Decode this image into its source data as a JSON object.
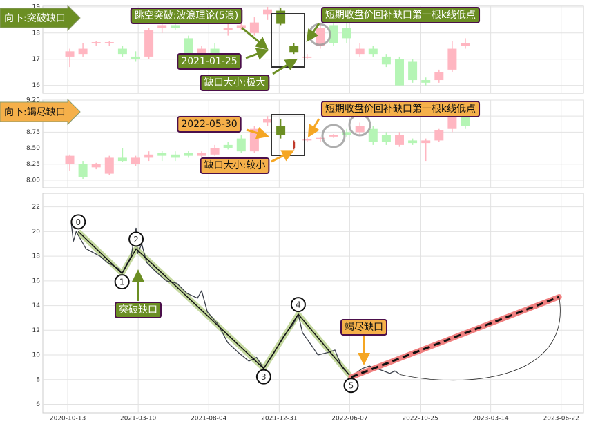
{
  "chart_data": [
    {
      "type": "candlestick",
      "title": "向下:突破缺口",
      "open": [
        17.1,
        17.2,
        17.6,
        17.6,
        17.4,
        17.1,
        17.1,
        18.2,
        18.3,
        17.8,
        17.2,
        17.4,
        18.1,
        18.2,
        18.0,
        18.7,
        18.85,
        17.5,
        17.05,
        17.5,
        18.3,
        18.2,
        17.2,
        17.4,
        17.1,
        17.0,
        16.9,
        16.2,
        16.2,
        16.6,
        17.5
      ],
      "high": [
        17.4,
        17.6,
        17.7,
        17.7,
        17.5,
        17.3,
        18.2,
        18.4,
        18.5,
        17.9,
        17.5,
        17.6,
        18.4,
        18.5,
        18.6,
        19.0,
        18.95,
        17.6,
        17.2,
        18.4,
        18.6,
        18.6,
        17.6,
        17.5,
        17.2,
        17.1,
        17.0,
        16.3,
        16.6,
        17.7,
        17.8
      ],
      "low": [
        16.7,
        17.1,
        17.5,
        17.5,
        17.1,
        16.9,
        17.0,
        18.0,
        18.1,
        17.0,
        17.1,
        17.1,
        17.9,
        18.1,
        17.9,
        18.5,
        18.3,
        17.2,
        17.0,
        17.4,
        17.5,
        17.6,
        17.1,
        17.1,
        16.7,
        16.0,
        16.1,
        16.0,
        16.1,
        16.5,
        17.4
      ],
      "close": [
        17.3,
        17.4,
        17.65,
        17.65,
        17.2,
        17.0,
        18.1,
        18.3,
        18.2,
        17.1,
        17.4,
        17.2,
        18.2,
        18.3,
        18.4,
        18.9,
        18.35,
        17.25,
        17.1,
        18.2,
        17.6,
        17.8,
        17.4,
        17.2,
        16.8,
        16.0,
        16.2,
        16.1,
        16.5,
        17.4,
        17.6
      ],
      "up_color": "#ffb6c1",
      "down_color": "#b5f5b5",
      "gap_candles": [
        16,
        17
      ],
      "gap_colors": [
        "#6b8e23",
        "#6b8e23"
      ],
      "ylim": [
        15.7,
        19.05
      ],
      "yticks": [
        16,
        17,
        18,
        19
      ],
      "annotations": [
        "跳空突破:波浪理论(5浪)",
        "2021-01-25",
        "缺口大小:极大",
        "短期收盘价回补缺口第一根k线低点"
      ]
    },
    {
      "type": "candlestick",
      "title": "向下:竭尽缺口",
      "open": [
        8.25,
        8.25,
        8.2,
        8.1,
        8.35,
        8.25,
        8.35,
        8.42,
        8.4,
        8.42,
        8.38,
        8.4,
        8.55,
        8.65,
        8.45,
        8.9,
        8.85,
        8.6,
        8.62,
        8.64,
        8.68,
        8.75,
        8.75,
        8.8,
        8.7,
        8.55,
        8.62,
        8.58,
        8.62,
        8.8,
        9.0
      ],
      "high": [
        8.4,
        8.3,
        8.27,
        8.38,
        8.5,
        8.38,
        8.45,
        8.46,
        8.45,
        8.46,
        8.45,
        8.55,
        8.6,
        8.7,
        8.85,
        9.0,
        8.95,
        8.62,
        8.66,
        8.68,
        8.72,
        8.8,
        8.9,
        8.85,
        8.75,
        8.75,
        8.65,
        8.65,
        8.8,
        9.05,
        9.05
      ],
      "low": [
        8.15,
        8.02,
        8.17,
        8.08,
        8.28,
        8.22,
        8.3,
        8.3,
        8.3,
        8.35,
        8.35,
        8.38,
        8.48,
        8.42,
        8.42,
        8.85,
        8.65,
        8.48,
        8.6,
        8.6,
        8.66,
        8.68,
        8.7,
        8.55,
        8.55,
        8.52,
        8.55,
        8.3,
        8.6,
        8.75,
        8.8
      ],
      "close": [
        8.38,
        8.05,
        8.25,
        8.35,
        8.3,
        8.35,
        8.4,
        8.38,
        8.35,
        8.38,
        8.42,
        8.5,
        8.5,
        8.45,
        8.8,
        8.95,
        8.7,
        8.5,
        8.64,
        8.66,
        8.7,
        8.7,
        8.85,
        8.6,
        8.6,
        8.7,
        8.58,
        8.62,
        8.78,
        9.0,
        8.85
      ],
      "up_color": "#ffb6c1",
      "down_color": "#b5f5b5",
      "gap_candles": [
        16,
        17
      ],
      "gap_colors": [
        "#6b8e23",
        "#c0392b"
      ],
      "ylim": [
        7.88,
        9.25
      ],
      "yticks": [
        {
          "value": 8,
          "label": "8.00"
        },
        8.25,
        {
          "value": 8.5,
          "label": "8.50"
        },
        8.75,
        {
          "value": 9,
          "label": "9.00"
        },
        9.25
      ],
      "annotations": [
        "2022-05-30",
        "缺口大小:较小",
        "短期收盘价回补缺口第一根k线低点"
      ]
    },
    {
      "type": "line",
      "color": "#3a3f4a",
      "x": [
        5,
        8,
        12,
        17,
        26,
        36,
        46,
        56,
        66,
        72,
        77,
        83,
        90,
        95,
        97,
        99,
        105,
        112,
        124,
        140,
        155,
        169,
        184,
        190,
        198,
        213,
        227,
        242,
        257,
        268,
        278,
        291,
        306,
        320,
        327,
        333,
        343,
        355,
        369,
        379,
        389,
        399,
        402,
        408,
        418,
        428,
        438,
        448,
        457,
        464,
        472
      ],
      "values": [
        20.7,
        19.2,
        20.0,
        19.5,
        18.6,
        18.3,
        18.0,
        17.5,
        17.2,
        17.0,
        16.6,
        17.3,
        18.0,
        19.8,
        20.3,
        18.2,
        19.0,
        17.5,
        16.8,
        16.0,
        15.8,
        15.0,
        14.6,
        15.2,
        13.5,
        12.5,
        11.0,
        10.2,
        9.5,
        9.8,
        8.9,
        10.0,
        11.5,
        12.5,
        13.3,
        11.8,
        11.0,
        10.0,
        10.2,
        10.4,
        9.0,
        8.4,
        8.2,
        8.5,
        8.9,
        9.1,
        8.9,
        8.7,
        8.5,
        8.7,
        8.4
      ],
      "wave": {
        "labels": [
          "0",
          "1",
          "2",
          "3",
          "4",
          "5"
        ],
        "x": [
          15,
          77,
          97,
          278,
          327,
          402
        ],
        "values": [
          20.0,
          16.6,
          18.6,
          8.9,
          13.3,
          8.2
        ],
        "color": "#c5d9a0"
      },
      "forecast": {
        "x": [
          402,
          697
        ],
        "values": [
          8.2,
          14.7
        ],
        "color": "#f08080"
      },
      "annotations": [
        "突破缺口",
        "竭尽缺口"
      ],
      "xlim": [
        -35.3,
        731.6
      ],
      "ylim": [
        5.3,
        23.1
      ],
      "xticks": [
        {
          "value": 0,
          "label": "2020-10-13"
        },
        {
          "value": 100,
          "label": "2021-03-10"
        },
        {
          "value": 200,
          "label": "2021-08-04"
        },
        {
          "value": 300,
          "label": "2021-12-31"
        },
        {
          "value": 400,
          "label": "2022-06-07"
        },
        {
          "value": 500,
          "label": "2022-10-25"
        },
        {
          "value": 600,
          "label": "2023-03-14"
        },
        {
          "value": 700,
          "label": "2023-06-22"
        }
      ],
      "yticks": [
        6,
        8,
        10,
        12,
        14,
        16,
        18,
        20,
        22
      ]
    }
  ]
}
